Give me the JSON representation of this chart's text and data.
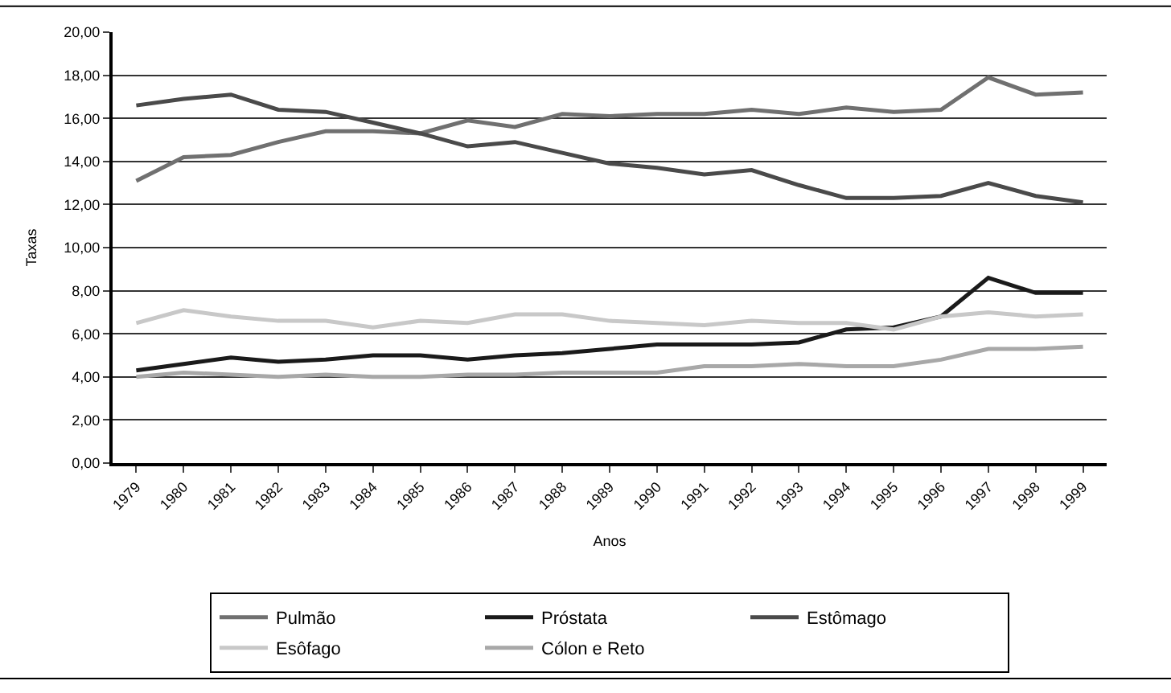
{
  "chart_data": {
    "type": "line",
    "xlabel": "Anos",
    "ylabel": "Taxas",
    "categories": [
      "1979",
      "1980",
      "1981",
      "1982",
      "1983",
      "1984",
      "1985",
      "1986",
      "1987",
      "1988",
      "1989",
      "1990",
      "1991",
      "1992",
      "1993",
      "1994",
      "1995",
      "1996",
      "1997",
      "1998",
      "1999"
    ],
    "series": [
      {
        "name": "Pulmão",
        "color": "#707070",
        "values": [
          13.1,
          14.2,
          14.3,
          14.9,
          15.4,
          15.4,
          15.3,
          15.9,
          15.6,
          16.2,
          16.1,
          16.2,
          16.2,
          16.4,
          16.2,
          16.5,
          16.3,
          16.4,
          17.9,
          17.1,
          17.2
        ]
      },
      {
        "name": "Próstata",
        "color": "#1a1a1a",
        "values": [
          4.3,
          4.6,
          4.9,
          4.7,
          4.8,
          5.0,
          5.0,
          4.8,
          5.0,
          5.1,
          5.3,
          5.5,
          5.5,
          5.5,
          5.6,
          6.2,
          6.3,
          6.8,
          8.6,
          7.9,
          7.9
        ]
      },
      {
        "name": "Estômago",
        "color": "#4a4a4a",
        "values": [
          16.6,
          16.9,
          17.1,
          16.4,
          16.3,
          15.8,
          15.3,
          14.7,
          14.9,
          14.4,
          13.9,
          13.7,
          13.4,
          13.6,
          12.9,
          12.3,
          12.3,
          12.4,
          13.0,
          12.4,
          12.1
        ]
      },
      {
        "name": "Esôfago",
        "color": "#c8c8c8",
        "values": [
          6.5,
          7.1,
          6.8,
          6.6,
          6.6,
          6.3,
          6.6,
          6.5,
          6.9,
          6.9,
          6.6,
          6.5,
          6.4,
          6.6,
          6.5,
          6.5,
          6.2,
          6.8,
          7.0,
          6.8,
          6.9
        ]
      },
      {
        "name": "Cólon e Reto",
        "color": "#a8a8a8",
        "values": [
          4.0,
          4.2,
          4.1,
          4.0,
          4.1,
          4.0,
          4.0,
          4.1,
          4.1,
          4.2,
          4.2,
          4.2,
          4.5,
          4.5,
          4.6,
          4.5,
          4.5,
          4.8,
          5.3,
          5.3,
          5.4
        ]
      }
    ],
    "ylim": [
      0,
      20
    ],
    "yticks": [
      {
        "value": 0,
        "label": "0,00"
      },
      {
        "value": 2,
        "label": "2,00"
      },
      {
        "value": 4,
        "label": "4,00"
      },
      {
        "value": 6,
        "label": "6,00"
      },
      {
        "value": 8,
        "label": "8,00"
      },
      {
        "value": 10,
        "label": "10,00"
      },
      {
        "value": 12,
        "label": "12,00"
      },
      {
        "value": 14,
        "label": "14,00"
      },
      {
        "value": 16,
        "label": "16,00"
      },
      {
        "value": 18,
        "label": "18,00"
      },
      {
        "value": 20,
        "label": "20,00"
      }
    ],
    "grid": "y",
    "legend": "bottom",
    "marker": "none",
    "line_style": "solid"
  }
}
